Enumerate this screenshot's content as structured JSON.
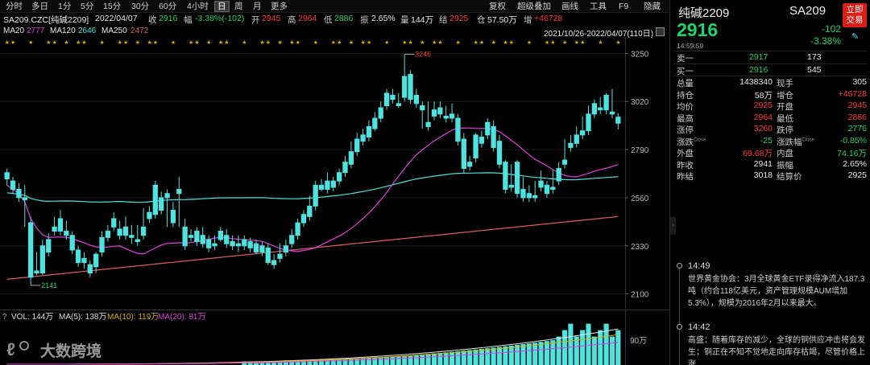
{
  "toolbar": {
    "left_items": [
      "分时",
      "多日",
      "1分",
      "5分",
      "15分",
      "30分",
      "60分",
      "4小时",
      "日",
      "周",
      "月",
      "更多"
    ],
    "active": "日",
    "right_items": [
      "复权",
      "超级叠加",
      "画线",
      "工具",
      "F9",
      "隐藏"
    ]
  },
  "infobar": {
    "symbol": "SA209.CZC[纯碱2209]",
    "date": "2022/04/07",
    "close_label": "收",
    "close": "2916",
    "change_label": "幅",
    "change": "-3.38%(-102)",
    "open_label": "开",
    "open": "2945",
    "high_label": "高",
    "high": "2964",
    "low_label": "低",
    "low": "2886",
    "amp_label": "振",
    "amp": "2.65%",
    "vol_label": "量",
    "vol": "144万",
    "settle_label": "结",
    "settle": "2925",
    "oi_label": "仓",
    "oi": "57.50万",
    "oi_chg_label": "增",
    "oi_chg": "+46728"
  },
  "mabar": {
    "ma20_label": "MA20",
    "ma20": "2777",
    "ma120_label": "MA120",
    "ma120": "2646",
    "ma250_label": "MA250",
    "ma250": "2472",
    "range": "2021/10/26-2022/04/07(110日)"
  },
  "volbar": {
    "vol_label": "VOL: 144万",
    "ma5_label": "MA(5): 138万",
    "ma10_label": "MA(10): 119万",
    "ma20_label": "MA(20): 81万",
    "axis_label": "90万"
  },
  "watermark": "大数跨境",
  "colors": {
    "up": "#ff3b3b",
    "down": "#4fe3e0",
    "ma20": "#e040e0",
    "ma120": "#4fe3e0",
    "ma250": "#e06060"
  },
  "chart_data": {
    "type": "candlestick",
    "y_ticks": [
      3250,
      3020,
      2790,
      2560,
      2330,
      2100
    ],
    "ylim": [
      2060,
      3290
    ],
    "annotations": [
      {
        "label": "3246",
        "value": 3246
      },
      {
        "label": "2141",
        "value": 2141
      }
    ],
    "candles": [
      [
        2680,
        2700,
        2650,
        2620
      ],
      [
        2640,
        2660,
        2600,
        2580
      ],
      [
        2600,
        2630,
        2560,
        2540
      ],
      [
        2560,
        2620,
        2550,
        2420
      ],
      [
        2440,
        2470,
        2180,
        2141
      ],
      [
        2210,
        2300,
        2200,
        2190
      ],
      [
        2330,
        2360,
        2200,
        2190
      ],
      [
        2360,
        2390,
        2300,
        2280
      ],
      [
        2420,
        2470,
        2400,
        2380
      ],
      [
        2460,
        2500,
        2400,
        2380
      ],
      [
        2400,
        2450,
        2380,
        2360
      ],
      [
        2380,
        2400,
        2310,
        2290
      ],
      [
        2310,
        2330,
        2250,
        2230
      ],
      [
        2270,
        2300,
        2250,
        2220
      ],
      [
        2240,
        2260,
        2200,
        2180
      ],
      [
        2290,
        2300,
        2230,
        2200
      ],
      [
        2370,
        2400,
        2300,
        2280
      ],
      [
        2400,
        2430,
        2370,
        2350
      ],
      [
        2460,
        2490,
        2420,
        2400
      ],
      [
        2410,
        2450,
        2380,
        2360
      ],
      [
        2420,
        2470,
        2380,
        2360
      ],
      [
        2380,
        2430,
        2370,
        2340
      ],
      [
        2360,
        2430,
        2350,
        2330
      ],
      [
        2420,
        2510,
        2380,
        2360
      ],
      [
        2490,
        2520,
        2460,
        2440
      ],
      [
        2620,
        2640,
        2480,
        2460
      ],
      [
        2560,
        2590,
        2500,
        2480
      ],
      [
        2580,
        2600,
        2560,
        2420
      ],
      [
        2500,
        2540,
        2440,
        2420
      ],
      [
        2600,
        2660,
        2580,
        2420
      ],
      [
        2420,
        2460,
        2330,
        2310
      ],
      [
        2380,
        2410,
        2370,
        2350
      ],
      [
        2400,
        2420,
        2350,
        2330
      ],
      [
        2380,
        2420,
        2340,
        2320
      ],
      [
        2360,
        2380,
        2320,
        2300
      ],
      [
        2340,
        2380,
        2330,
        2310
      ],
      [
        2400,
        2420,
        2360,
        2350
      ],
      [
        2380,
        2410,
        2340,
        2320
      ],
      [
        2350,
        2380,
        2330,
        2310
      ],
      [
        2340,
        2380,
        2330,
        2300
      ],
      [
        2360,
        2380,
        2330,
        2310
      ],
      [
        2350,
        2370,
        2320,
        2300
      ],
      [
        2340,
        2360,
        2300,
        2290
      ],
      [
        2330,
        2350,
        2300,
        2280
      ],
      [
        2320,
        2340,
        2250,
        2240
      ],
      [
        2260,
        2290,
        2240,
        2220
      ],
      [
        2290,
        2340,
        2270,
        2250
      ],
      [
        2330,
        2360,
        2300,
        2280
      ],
      [
        2380,
        2410,
        2340,
        2320
      ],
      [
        2440,
        2460,
        2380,
        2360
      ],
      [
        2480,
        2500,
        2440,
        2420
      ],
      [
        2520,
        2570,
        2470,
        2450
      ],
      [
        2620,
        2640,
        2520,
        2500
      ],
      [
        2620,
        2650,
        2600,
        2590
      ],
      [
        2640,
        2680,
        2600,
        2580
      ],
      [
        2640,
        2660,
        2610,
        2590
      ],
      [
        2680,
        2700,
        2640,
        2620
      ],
      [
        2730,
        2760,
        2680,
        2660
      ],
      [
        2780,
        2830,
        2720,
        2700
      ],
      [
        2840,
        2870,
        2780,
        2760
      ],
      [
        2860,
        2890,
        2830,
        2810
      ],
      [
        2900,
        2930,
        2850,
        2830
      ],
      [
        2940,
        2970,
        2890,
        2880
      ],
      [
        2990,
        3020,
        2940,
        2920
      ],
      [
        3060,
        3080,
        3000,
        2980
      ],
      [
        3050,
        3080,
        3030,
        3010
      ],
      [
        3010,
        3060,
        3000,
        2990
      ],
      [
        3140,
        3246,
        3040,
        3020
      ],
      [
        3150,
        3170,
        3030,
        3010
      ],
      [
        3050,
        3080,
        3010,
        2990
      ],
      [
        3000,
        3020,
        2980,
        2890
      ],
      [
        2920,
        3020,
        2900,
        2880
      ],
      [
        2980,
        3020,
        2950,
        2930
      ],
      [
        2990,
        3020,
        2960,
        2940
      ],
      [
        2950,
        3000,
        2940,
        2920
      ],
      [
        2960,
        3010,
        2940,
        2920
      ],
      [
        2940,
        2960,
        2830,
        2810
      ],
      [
        2840,
        2870,
        2700,
        2680
      ],
      [
        2730,
        2760,
        2710,
        2690
      ],
      [
        2860,
        2870,
        2750,
        2730
      ],
      [
        2850,
        2880,
        2820,
        2800
      ],
      [
        2920,
        2940,
        2860,
        2840
      ],
      [
        2900,
        2930,
        2800,
        2780
      ],
      [
        2830,
        2860,
        2720,
        2700
      ],
      [
        2730,
        2740,
        2600,
        2580
      ],
      [
        2620,
        2720,
        2610,
        2590
      ],
      [
        2730,
        2740,
        2580,
        2560
      ],
      [
        2600,
        2660,
        2560,
        2540
      ],
      [
        2580,
        2620,
        2560,
        2540
      ],
      [
        2570,
        2640,
        2560,
        2540
      ],
      [
        2640,
        2690,
        2610,
        2590
      ],
      [
        2620,
        2640,
        2580,
        2560
      ],
      [
        2610,
        2690,
        2600,
        2580
      ],
      [
        2700,
        2730,
        2640,
        2620
      ],
      [
        2740,
        2840,
        2720,
        2700
      ],
      [
        2820,
        2860,
        2800,
        2780
      ],
      [
        2860,
        2900,
        2820,
        2800
      ],
      [
        2880,
        2950,
        2860,
        2840
      ],
      [
        2960,
        3000,
        2880,
        2860
      ],
      [
        3010,
        3030,
        2960,
        2940
      ],
      [
        2990,
        3040,
        2980,
        2960
      ],
      [
        3050,
        3060,
        2980,
        2960
      ],
      [
        2970,
        3080,
        2960,
        2940
      ],
      [
        2945,
        2964,
        2916,
        2886
      ]
    ]
  },
  "right": {
    "name": "纯碱2209",
    "code": "SA209",
    "btn": "立即交易",
    "price": "2916",
    "chg": "-102",
    "pct": "-3.38%",
    "time": "14:59:59",
    "sell1_label": "卖一",
    "sell1": "2917",
    "sell1_vol": "173",
    "buy1_label": "买一",
    "buy1": "2916",
    "buy1_vol": "545",
    "rows": [
      {
        "l1": "总量",
        "v1": "1438340",
        "c1": "white",
        "l2": "现手",
        "v2": "305",
        "c2": "white"
      },
      {
        "l1": "持仓",
        "v1": "58万",
        "c1": "white",
        "l2": "增仓",
        "v2": "+46728",
        "c2": "red"
      },
      {
        "l1": "均价",
        "v1": "2925",
        "c1": "red",
        "l2": "开盘",
        "v2": "2945",
        "c2": "red"
      },
      {
        "l1": "最高",
        "v1": "2964",
        "c1": "red",
        "l2": "最低",
        "v2": "2886",
        "c2": "red"
      },
      {
        "l1": "涨停",
        "v1": "3260",
        "c1": "red",
        "l2": "跌停",
        "v2": "2776",
        "c2": "green"
      },
      {
        "l1": "涨跌",
        "v1": "-25",
        "c1": "green",
        "l2": "涨跌幅",
        "v2": "-0.85%",
        "c2": "green"
      },
      {
        "l1": "外盘",
        "v1": "69.68万",
        "c1": "red",
        "l2": "内盘",
        "v2": "74.16万",
        "c2": "green"
      },
      {
        "l1": "昨收",
        "v1": "2941",
        "c1": "white",
        "l2": "振幅",
        "v2": "2.65%",
        "c2": "white"
      },
      {
        "l1": "昨结",
        "v1": "3018",
        "c1": "white",
        "l2": "结算价",
        "v2": "2925",
        "c2": "white"
      }
    ],
    "close_tag": "Close",
    "news": [
      {
        "time": "14:49",
        "text": "世界黄金协会：3月全球黄金ETF录得净流入187.3吨（约合118亿美元，资产管理规模AUM增加5.3%），规模为2016年2月以来最大。"
      },
      {
        "time": "14:42",
        "text": "高盛：随着库存的减少，全球的铜供应冲击将会发生；铜正在不知不觉地走向库存枯竭，尽管价格上涨"
      }
    ]
  }
}
